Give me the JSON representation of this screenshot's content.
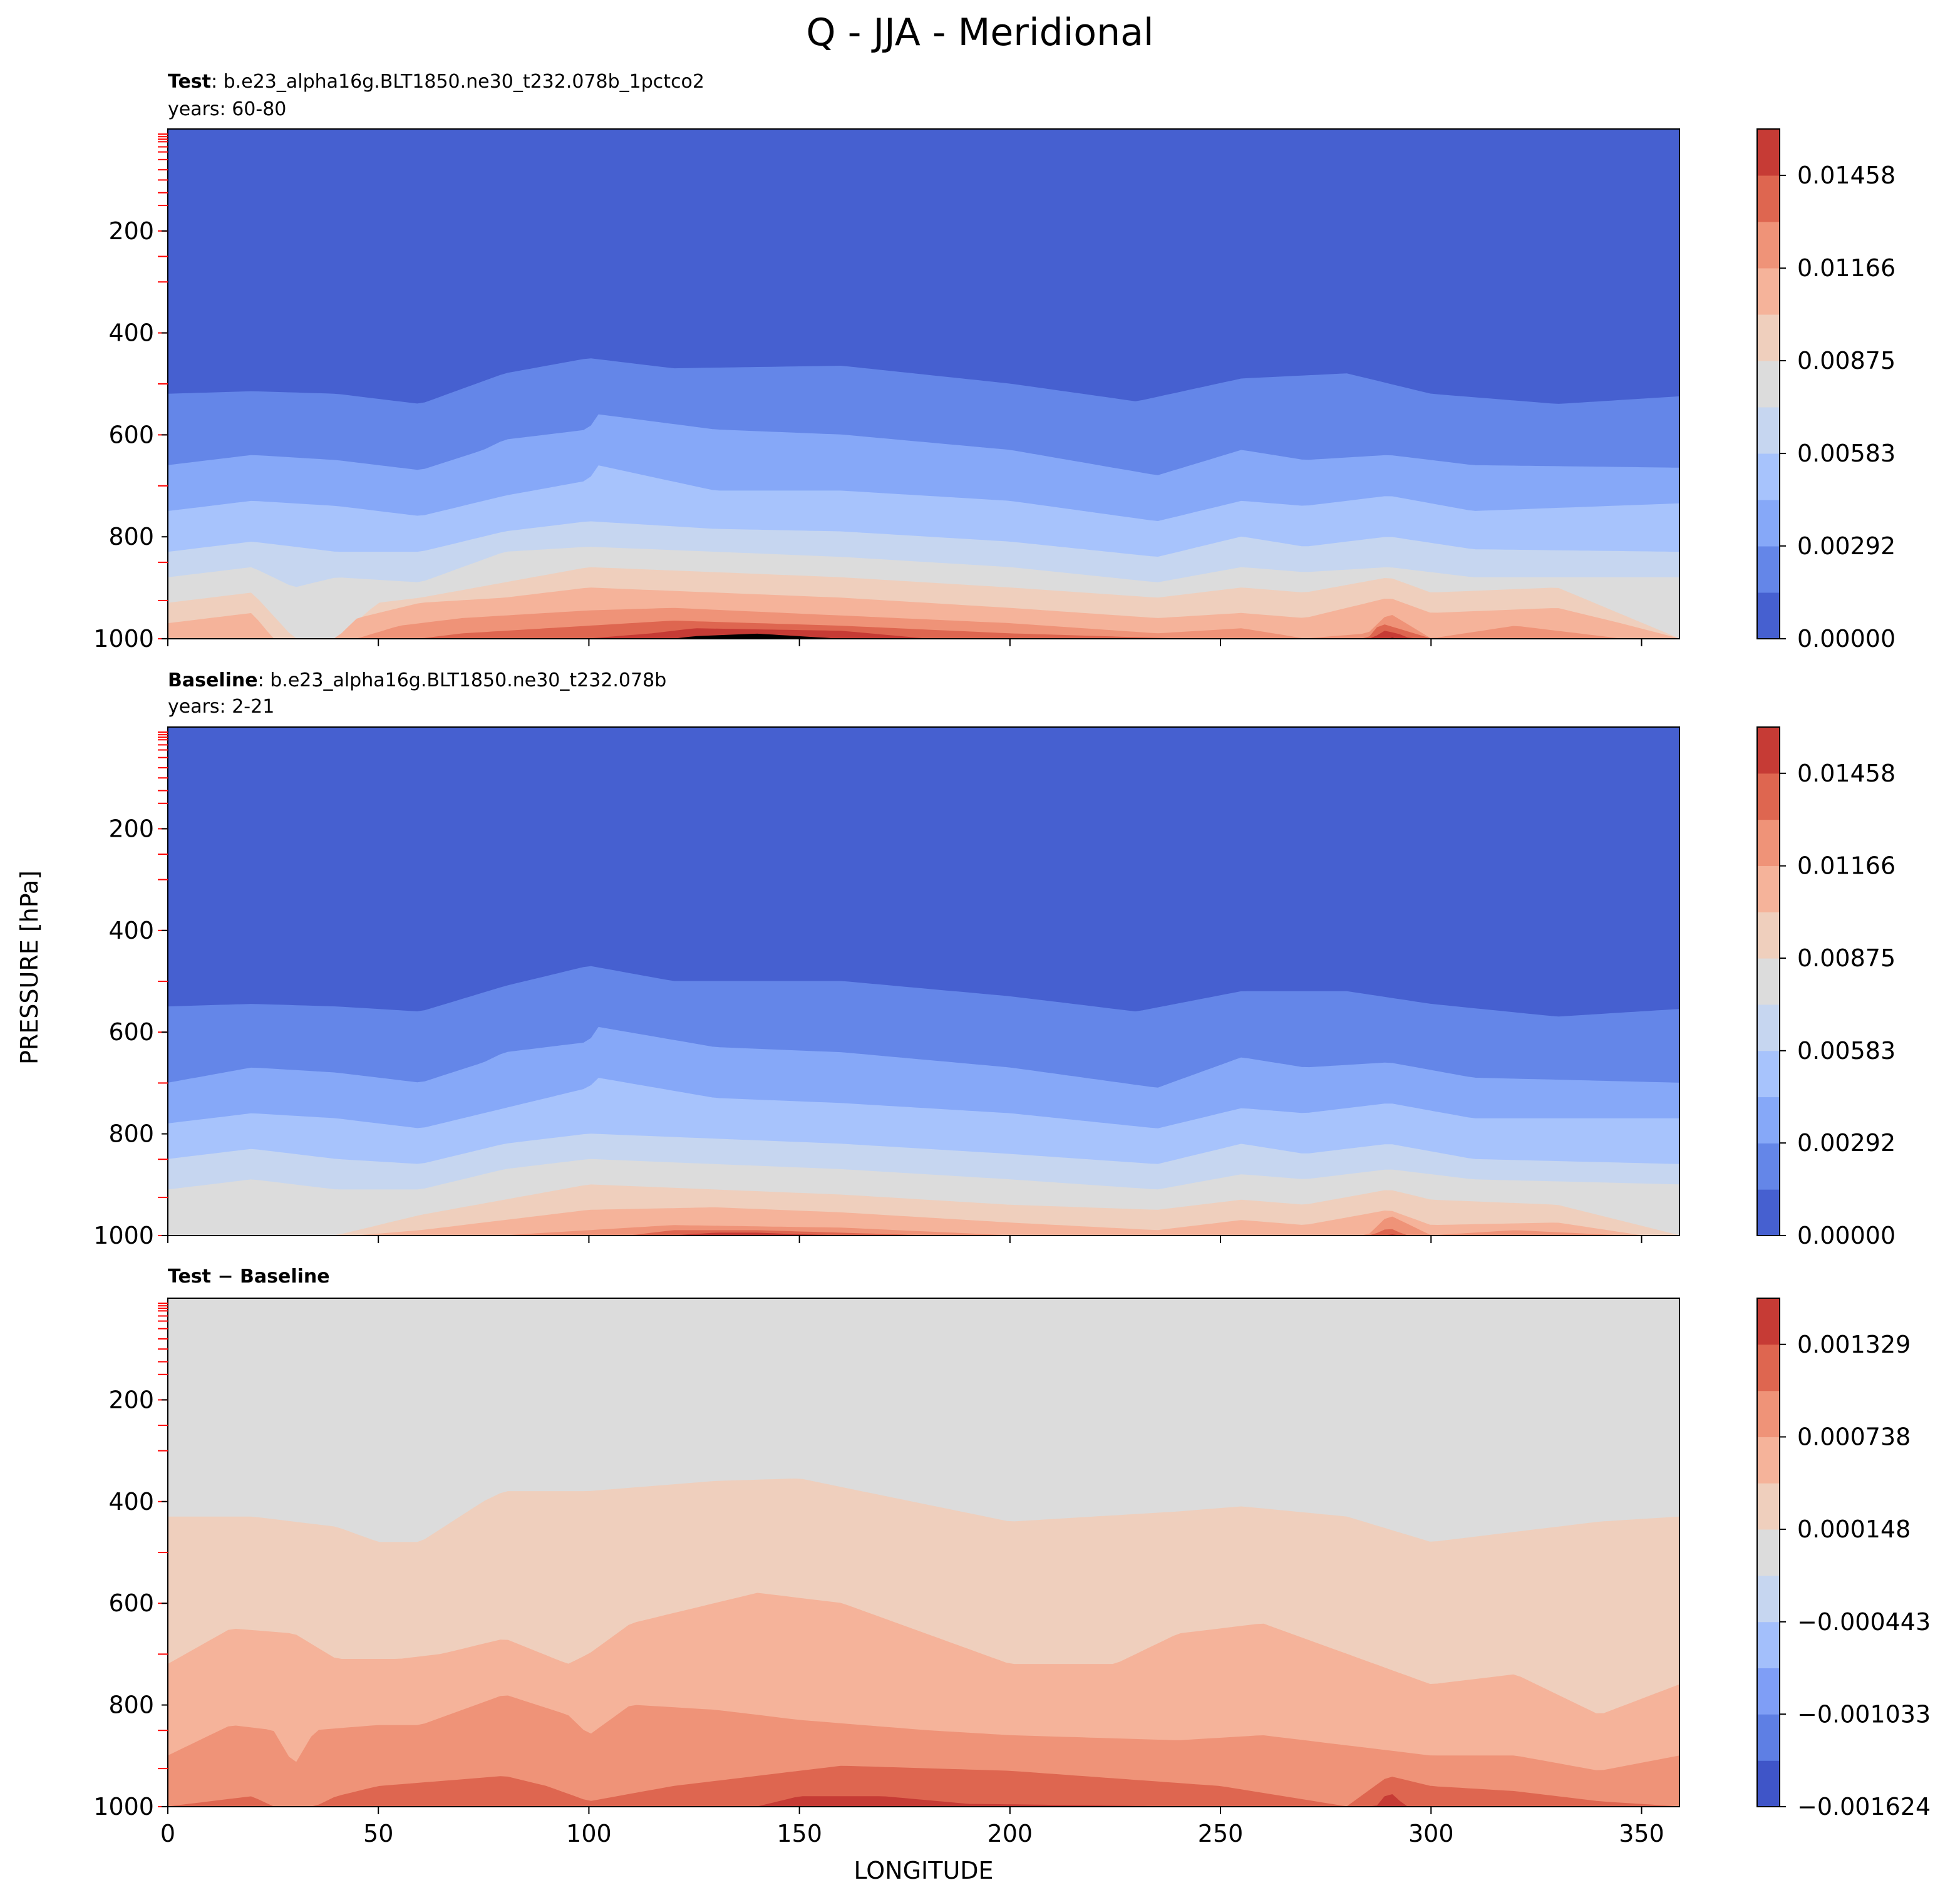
{
  "figure": {
    "title": "Q - JJA - Meridional",
    "ylabel": "PRESSURE [hPa]",
    "xlabel": "LONGITUDE"
  },
  "chart_data": [
    {
      "type": "heatmap",
      "panel": "test",
      "title_bold": "Test",
      "title_rest": ": b.e23_alpha16g.BLT1850.ne30_t232.078b_1pctco2",
      "subtitle": "years: 60-80",
      "xlim": [
        0,
        359
      ],
      "ylim": [
        1000,
        0
      ],
      "x_ticks": [
        "0",
        "50",
        "100",
        "150",
        "200",
        "250",
        "300",
        "350"
      ],
      "y_ticks": [
        "200",
        "400",
        "600",
        "800",
        "1000"
      ],
      "colorbar_ticks": [
        "0.00000",
        "0.00292",
        "0.00583",
        "0.00875",
        "0.01166",
        "0.01458"
      ],
      "colorbar_levels": [
        0.0,
        0.001458,
        0.002916,
        0.004374,
        0.005832,
        0.00729,
        0.008748,
        0.010206,
        0.011664,
        0.013122,
        0.01458,
        0.016038
      ],
      "level_pressure_profiles": [
        {
          "lon": [
            0,
            20,
            40,
            60,
            80,
            100,
            120,
            160,
            200,
            230,
            255,
            280,
            300,
            330,
            359
          ],
          "p": [
            520,
            515,
            520,
            540,
            480,
            450,
            470,
            465,
            500,
            535,
            490,
            480,
            520,
            540,
            525
          ]
        },
        {
          "lon": [
            0,
            20,
            40,
            60,
            75,
            80,
            100,
            102,
            130,
            160,
            200,
            235,
            255,
            270,
            290,
            310,
            359
          ],
          "p": [
            660,
            640,
            650,
            670,
            630,
            610,
            590,
            560,
            590,
            600,
            630,
            680,
            630,
            650,
            640,
            660,
            665
          ]
        },
        {
          "lon": [
            0,
            20,
            40,
            60,
            80,
            100,
            102,
            130,
            160,
            200,
            235,
            255,
            270,
            290,
            310,
            359
          ],
          "p": [
            750,
            730,
            740,
            760,
            720,
            690,
            660,
            710,
            710,
            730,
            770,
            730,
            740,
            720,
            750,
            735
          ]
        },
        {
          "lon": [
            0,
            20,
            40,
            60,
            80,
            100,
            130,
            160,
            200,
            235,
            255,
            270,
            290,
            310,
            359
          ],
          "p": [
            830,
            810,
            830,
            830,
            790,
            770,
            785,
            790,
            810,
            840,
            800,
            820,
            800,
            825,
            830
          ]
        },
        {
          "lon": [
            0,
            20,
            30,
            40,
            60,
            80,
            100,
            130,
            160,
            200,
            235,
            255,
            270,
            290,
            310,
            359
          ],
          "p": [
            880,
            860,
            900,
            880,
            890,
            830,
            820,
            830,
            840,
            860,
            890,
            860,
            870,
            860,
            880,
            880
          ]
        },
        {
          "lon": [
            0,
            20,
            30,
            40,
            50,
            60,
            80,
            100,
            130,
            160,
            200,
            235,
            255,
            270,
            290,
            300,
            330,
            359
          ],
          "p": [
            930,
            910,
            1000,
            1000,
            930,
            920,
            890,
            860,
            870,
            880,
            900,
            920,
            900,
            910,
            880,
            910,
            900,
            1000
          ]
        },
        {
          "lon": [
            0,
            20,
            25,
            40,
            45,
            60,
            80,
            100,
            130,
            160,
            200,
            235,
            255,
            270,
            290,
            300,
            330,
            345,
            359
          ],
          "p": [
            970,
            950,
            1000,
            1000,
            960,
            930,
            920,
            900,
            910,
            920,
            940,
            960,
            950,
            960,
            920,
            950,
            940,
            970,
            1000
          ]
        },
        {
          "lon": [
            0,
            30,
            45,
            55,
            70,
            100,
            120,
            160,
            200,
            235,
            255,
            270,
            285,
            290,
            300,
            320,
            345,
            359
          ],
          "p": [
            1000,
            1000,
            1000,
            975,
            960,
            945,
            940,
            955,
            970,
            990,
            980,
            1000,
            990,
            950,
            1000,
            975,
            1000,
            1000
          ]
        },
        {
          "lon": [
            0,
            60,
            70,
            100,
            120,
            160,
            200,
            240,
            285,
            288,
            292,
            300,
            359
          ],
          "p": [
            1000,
            1000,
            990,
            975,
            965,
            975,
            990,
            1000,
            1000,
            970,
            980,
            1000,
            1000
          ]
        },
        {
          "lon": [
            0,
            100,
            115,
            125,
            160,
            180,
            200,
            286,
            289,
            292,
            295,
            359
          ],
          "p": [
            1000,
            1000,
            990,
            980,
            985,
            1000,
            1000,
            1000,
            985,
            990,
            1000,
            1000
          ]
        },
        {
          "lon": [
            0,
            120,
            125,
            140,
            150,
            160,
            289,
            290,
            291,
            359
          ],
          "p": [
            1000,
            1000,
            995,
            990,
            995,
            1000,
            1000,
            992,
            1000,
            1000
          ]
        }
      ]
    },
    {
      "type": "heatmap",
      "panel": "baseline",
      "title_bold": "Baseline",
      "title_rest": ": b.e23_alpha16g.BLT1850.ne30_t232.078b",
      "subtitle": "years: 2-21",
      "xlim": [
        0,
        359
      ],
      "ylim": [
        1000,
        0
      ],
      "x_ticks": [
        "0",
        "50",
        "100",
        "150",
        "200",
        "250",
        "300",
        "350"
      ],
      "y_ticks": [
        "200",
        "400",
        "600",
        "800",
        "1000"
      ],
      "colorbar_ticks": [
        "0.00000",
        "0.00292",
        "0.00583",
        "0.00875",
        "0.01166",
        "0.01458"
      ],
      "colorbar_levels": [
        0.0,
        0.001458,
        0.002916,
        0.004374,
        0.005832,
        0.00729,
        0.008748,
        0.010206,
        0.011664,
        0.013122,
        0.01458,
        0.016038
      ],
      "level_pressure_profiles": [
        {
          "lon": [
            0,
            20,
            40,
            60,
            80,
            100,
            120,
            160,
            200,
            230,
            255,
            280,
            300,
            330,
            359
          ],
          "p": [
            550,
            545,
            550,
            560,
            510,
            470,
            500,
            500,
            530,
            560,
            520,
            520,
            545,
            570,
            555
          ]
        },
        {
          "lon": [
            0,
            20,
            40,
            60,
            75,
            80,
            100,
            102,
            130,
            160,
            200,
            235,
            255,
            270,
            290,
            310,
            359
          ],
          "p": [
            700,
            670,
            680,
            700,
            660,
            640,
            620,
            590,
            630,
            640,
            670,
            710,
            650,
            670,
            660,
            690,
            700
          ]
        },
        {
          "lon": [
            0,
            20,
            40,
            60,
            80,
            100,
            102,
            130,
            160,
            200,
            235,
            255,
            270,
            290,
            310,
            359
          ],
          "p": [
            780,
            760,
            770,
            790,
            750,
            710,
            690,
            730,
            740,
            760,
            790,
            750,
            760,
            740,
            770,
            770
          ]
        },
        {
          "lon": [
            0,
            20,
            40,
            60,
            80,
            100,
            130,
            160,
            200,
            235,
            255,
            270,
            290,
            310,
            359
          ],
          "p": [
            850,
            830,
            850,
            860,
            820,
            800,
            810,
            820,
            840,
            860,
            820,
            840,
            820,
            850,
            860
          ]
        },
        {
          "lon": [
            0,
            20,
            40,
            60,
            80,
            100,
            130,
            160,
            200,
            235,
            255,
            270,
            290,
            310,
            359
          ],
          "p": [
            910,
            890,
            910,
            910,
            870,
            850,
            860,
            870,
            890,
            910,
            880,
            890,
            870,
            890,
            900
          ]
        },
        {
          "lon": [
            0,
            30,
            40,
            60,
            80,
            100,
            130,
            160,
            200,
            235,
            255,
            270,
            290,
            300,
            330,
            359
          ],
          "p": [
            1000,
            1000,
            1000,
            960,
            930,
            900,
            910,
            920,
            940,
            950,
            930,
            940,
            910,
            930,
            940,
            1000
          ]
        },
        {
          "lon": [
            0,
            45,
            60,
            80,
            100,
            130,
            160,
            200,
            235,
            255,
            270,
            290,
            300,
            330,
            350,
            359
          ],
          "p": [
            1000,
            1000,
            990,
            970,
            950,
            945,
            955,
            975,
            990,
            970,
            980,
            950,
            980,
            975,
            1000,
            1000
          ]
        },
        {
          "lon": [
            0,
            80,
            100,
            120,
            160,
            200,
            240,
            285,
            290,
            300,
            320,
            345,
            359
          ],
          "p": [
            1000,
            1000,
            990,
            980,
            985,
            1000,
            1000,
            1000,
            960,
            1000,
            990,
            1000,
            1000
          ]
        },
        {
          "lon": [
            0,
            110,
            120,
            140,
            160,
            180,
            286,
            290,
            294,
            359
          ],
          "p": [
            1000,
            1000,
            990,
            990,
            995,
            1000,
            1000,
            985,
            1000,
            1000
          ]
        },
        {
          "lon": [
            0,
            120,
            130,
            140,
            150,
            160,
            289,
            290,
            291,
            359
          ],
          "p": [
            1000,
            1000,
            995,
            995,
            998,
            1000,
            1000,
            992,
            1000,
            1000
          ]
        }
      ]
    },
    {
      "type": "heatmap",
      "panel": "difference",
      "title_bold": "Test − Baseline",
      "xlim": [
        0,
        359
      ],
      "ylim": [
        1000,
        0
      ],
      "x_ticks": [
        "0",
        "50",
        "100",
        "150",
        "200",
        "250",
        "300",
        "350"
      ],
      "y_ticks": [
        "200",
        "400",
        "600",
        "800",
        "1000"
      ],
      "colorbar_ticks": [
        "−0.001624",
        "−0.001033",
        "−0.000443",
        "0.000148",
        "0.000738",
        "0.001329"
      ],
      "colorbar_levels": [
        -0.001624,
        -0.001329,
        -0.001033,
        -0.000738,
        -0.000443,
        -0.000148,
        0.000148,
        0.000443,
        0.000738,
        0.001033,
        0.001329,
        0.001624
      ],
      "level_pressure_profiles": [
        {
          "lon": [
            0,
            20,
            40,
            50,
            60,
            75,
            80,
            100,
            130,
            150,
            200,
            240,
            255,
            280,
            300,
            320,
            340,
            359
          ],
          "p": [
            430,
            430,
            450,
            480,
            480,
            400,
            380,
            380,
            360,
            355,
            440,
            420,
            410,
            430,
            480,
            460,
            440,
            430
          ]
        },
        {
          "lon": [
            0,
            15,
            30,
            40,
            55,
            65,
            80,
            95,
            100,
            110,
            140,
            160,
            180,
            200,
            225,
            240,
            260,
            280,
            300,
            320,
            340,
            359
          ],
          "p": [
            720,
            650,
            660,
            710,
            710,
            700,
            670,
            720,
            700,
            640,
            580,
            600,
            660,
            720,
            720,
            660,
            640,
            700,
            760,
            740,
            820,
            760
          ]
        },
        {
          "lon": [
            0,
            15,
            25,
            30,
            35,
            50,
            60,
            80,
            95,
            100,
            110,
            130,
            150,
            180,
            200,
            240,
            260,
            280,
            300,
            320,
            340,
            359
          ],
          "p": [
            900,
            840,
            850,
            920,
            850,
            840,
            840,
            780,
            820,
            860,
            800,
            810,
            830,
            850,
            860,
            870,
            860,
            880,
            900,
            900,
            930,
            900
          ]
        },
        {
          "lon": [
            0,
            20,
            25,
            35,
            40,
            50,
            65,
            80,
            90,
            100,
            120,
            140,
            160,
            200,
            250,
            280,
            290,
            300,
            320,
            340,
            359
          ],
          "p": [
            1000,
            980,
            1000,
            1000,
            980,
            960,
            950,
            940,
            960,
            990,
            960,
            940,
            920,
            930,
            960,
            1000,
            940,
            960,
            970,
            990,
            1000
          ]
        },
        {
          "lon": [
            0,
            140,
            150,
            170,
            190,
            240,
            287,
            290,
            294,
            359
          ],
          "p": [
            1000,
            1000,
            980,
            980,
            995,
            1000,
            1000,
            970,
            1000,
            1000
          ]
        }
      ]
    }
  ],
  "colors": {
    "levels_seq": [
      "#4660d0",
      "#6486e8",
      "#86a8f8",
      "#a7c3fc",
      "#c6d6f0",
      "#dcdcdc",
      "#efcfbd",
      "#f5b39a",
      "#ef9378",
      "#de6650",
      "#c63b35"
    ],
    "diff_seq": [
      "#3f55c8",
      "#5e7fe4",
      "#7f9ef6",
      "#a3bffb",
      "#c6d6f0",
      "#dcdcdc",
      "#efcfbd",
      "#f5b39a",
      "#ef9378",
      "#de6650",
      "#c63b35"
    ],
    "red_ticks": "#ff0000"
  }
}
